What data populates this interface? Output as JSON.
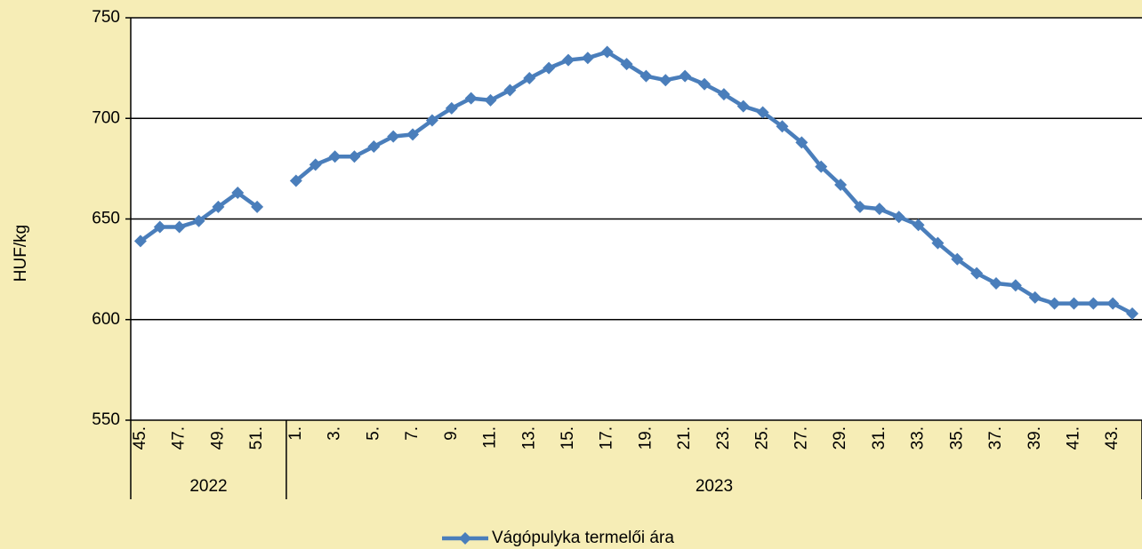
{
  "chart_data": {
    "type": "line",
    "y_label": "HUF/kg",
    "category_groups": [
      {
        "name": "2022",
        "categories": [
          "45.",
          null,
          "47.",
          null,
          "49.",
          null,
          "51.",
          null
        ]
      },
      {
        "name": "2023",
        "categories": [
          "1.",
          null,
          "3.",
          null,
          "5.",
          null,
          "7.",
          null,
          "9.",
          null,
          "11.",
          null,
          "13.",
          null,
          "15.",
          null,
          "17.",
          null,
          "19.",
          null,
          "21.",
          null,
          "23.",
          null,
          "25.",
          null,
          "27.",
          null,
          "29.",
          null,
          "31.",
          null,
          "33.",
          null,
          "35.",
          null,
          "37.",
          null,
          "39.",
          null,
          "41.",
          null,
          "43.",
          null
        ]
      }
    ],
    "series": [
      {
        "name": "Vágópulyka termelői ára",
        "color": "#4a7ebb",
        "values": [
          639,
          646,
          646,
          649,
          656,
          663,
          656,
          null,
          669,
          677,
          681,
          681,
          686,
          691,
          692,
          699,
          705,
          710,
          709,
          714,
          720,
          725,
          729,
          730,
          733,
          727,
          721,
          719,
          721,
          717,
          712,
          706,
          703,
          696,
          688,
          676,
          667,
          656,
          655,
          651,
          647,
          638,
          630,
          623,
          618,
          617,
          611,
          608,
          608,
          608,
          608,
          603
        ]
      }
    ],
    "ylim": [
      550,
      750
    ],
    "yticks": [
      550,
      600,
      650,
      700,
      750
    ],
    "grid": true
  }
}
